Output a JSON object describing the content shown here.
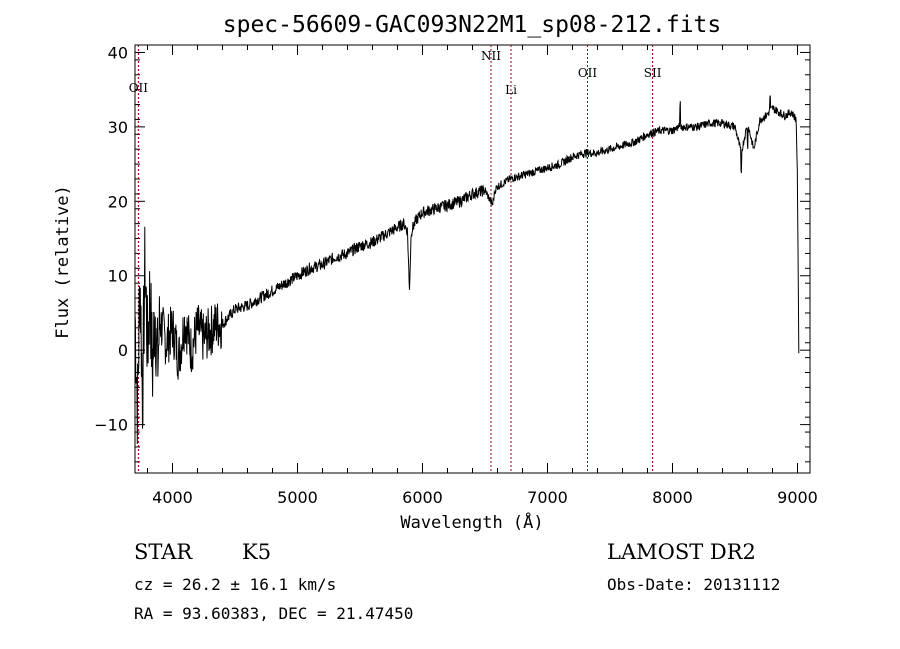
{
  "chart_data": {
    "type": "line",
    "title": "spec-56609-GAC093N22M1_sp08-212.fits",
    "xlabel": "Wavelength (Å)",
    "ylabel": "Flux (relative)",
    "xlim": [
      3700,
      9100
    ],
    "ylim": [
      -16.5,
      41
    ],
    "xticks": [
      4000,
      5000,
      6000,
      7000,
      8000,
      9000
    ],
    "yticks": [
      -10,
      0,
      10,
      20,
      30,
      40
    ],
    "grid": false,
    "line_color": "#000000",
    "marker_color": "#8b0000",
    "spectral_lines": [
      {
        "label": "OII",
        "x": 3727
      },
      {
        "label": "NII",
        "x": 6548
      },
      {
        "label": "Li",
        "x": 6708
      },
      {
        "label": "OII",
        "x": 7320
      },
      {
        "label": "SII",
        "x": 7841
      }
    ],
    "spectrum": [
      [
        3700,
        5
      ],
      [
        3720,
        -8
      ],
      [
        3740,
        10
      ],
      [
        3760,
        -6
      ],
      [
        3780,
        12
      ],
      [
        3800,
        0
      ],
      [
        3820,
        8
      ],
      [
        3840,
        -3
      ],
      [
        3860,
        6
      ],
      [
        3880,
        -2
      ],
      [
        3900,
        4
      ],
      [
        3950,
        1
      ],
      [
        4000,
        3
      ],
      [
        4050,
        -1
      ],
      [
        4100,
        4
      ],
      [
        4150,
        0
      ],
      [
        4200,
        3
      ],
      [
        4250,
        1.5
      ],
      [
        4300,
        2.5
      ],
      [
        4350,
        3.5
      ],
      [
        4400,
        3.5
      ],
      [
        4450,
        4.5
      ],
      [
        4500,
        5.5
      ],
      [
        4600,
        6
      ],
      [
        4700,
        7
      ],
      [
        4800,
        8
      ],
      [
        4900,
        9
      ],
      [
        5000,
        10
      ],
      [
        5100,
        11
      ],
      [
        5200,
        11.5
      ],
      [
        5300,
        12.5
      ],
      [
        5400,
        13
      ],
      [
        5500,
        14
      ],
      [
        5600,
        14.5
      ],
      [
        5700,
        15.5
      ],
      [
        5800,
        16.5
      ],
      [
        5850,
        17
      ],
      [
        5880,
        16
      ],
      [
        5895,
        8
      ],
      [
        5910,
        16
      ],
      [
        5950,
        17.5
      ],
      [
        6000,
        18.5
      ],
      [
        6100,
        19
      ],
      [
        6200,
        19.5
      ],
      [
        6300,
        20
      ],
      [
        6400,
        21
      ],
      [
        6500,
        21.5
      ],
      [
        6560,
        19.5
      ],
      [
        6580,
        21.5
      ],
      [
        6600,
        22
      ],
      [
        6700,
        23
      ],
      [
        6800,
        23.5
      ],
      [
        6900,
        24
      ],
      [
        7000,
        24.5
      ],
      [
        7100,
        25
      ],
      [
        7200,
        26
      ],
      [
        7300,
        26.5
      ],
      [
        7400,
        26.5
      ],
      [
        7500,
        27
      ],
      [
        7600,
        27.5
      ],
      [
        7700,
        28
      ],
      [
        7800,
        29
      ],
      [
        7900,
        29.5
      ],
      [
        8000,
        29.5
      ],
      [
        8050,
        30
      ],
      [
        8100,
        30
      ],
      [
        8200,
        30
      ],
      [
        8300,
        30.5
      ],
      [
        8400,
        30.5
      ],
      [
        8500,
        30
      ],
      [
        8550,
        26.5
      ],
      [
        8600,
        30.5
      ],
      [
        8650,
        27
      ],
      [
        8700,
        31
      ],
      [
        8750,
        31.5
      ],
      [
        8800,
        32.5
      ],
      [
        8850,
        32
      ],
      [
        8900,
        31.5
      ],
      [
        8950,
        32
      ],
      [
        8990,
        31
      ],
      [
        9000,
        22
      ],
      [
        9010,
        0
      ]
    ]
  },
  "info": {
    "class": "STAR",
    "subclass": "K5",
    "survey": "LAMOST DR2",
    "cz": "cz = 26.2 ± 16.1 km/s",
    "obs_date": "Obs-Date: 20131112",
    "coords": "RA =  93.60383, DEC =  21.47450"
  }
}
